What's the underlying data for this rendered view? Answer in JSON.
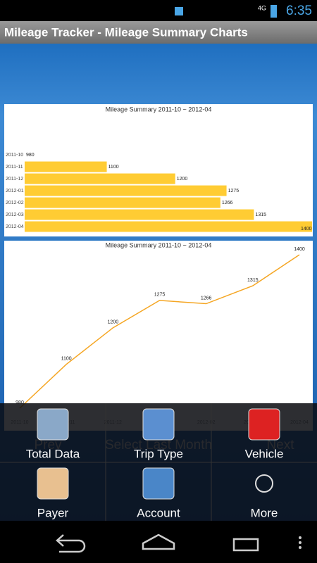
{
  "status_bar": {
    "network": "4G",
    "time": "6:35"
  },
  "app_title": "Mileage Tracker - Mileage Summary Charts",
  "chart_data": [
    {
      "type": "bar",
      "orientation": "horizontal",
      "title": "Mileage Summary 2011-10 ~ 2012-04",
      "categories": [
        "2011-10",
        "2011-11",
        "2011-12",
        "2012-01",
        "2012-02",
        "2012-03",
        "2012-04"
      ],
      "values": [
        980,
        1100,
        1200,
        1275,
        1266,
        1315,
        1400
      ],
      "color": "#ffcc33",
      "xlim": [
        980,
        1400
      ]
    },
    {
      "type": "line",
      "title": "Mileage Summary 2011-10 ~ 2012-04",
      "categories": [
        "2011-10",
        "2011-11",
        "2011-12",
        "2012-01",
        "2012-02",
        "2012-03",
        "2012-04"
      ],
      "values": [
        980,
        1100,
        1200,
        1275,
        1266,
        1315,
        1400
      ],
      "color": "#f5a623",
      "ylim": [
        980,
        1400
      ]
    }
  ],
  "buttons": [
    "Prev",
    "Select Last Month",
    "Next"
  ],
  "menu": [
    "Total Data",
    "Trip Type",
    "Vehicle",
    "Payer",
    "Account",
    "More"
  ]
}
